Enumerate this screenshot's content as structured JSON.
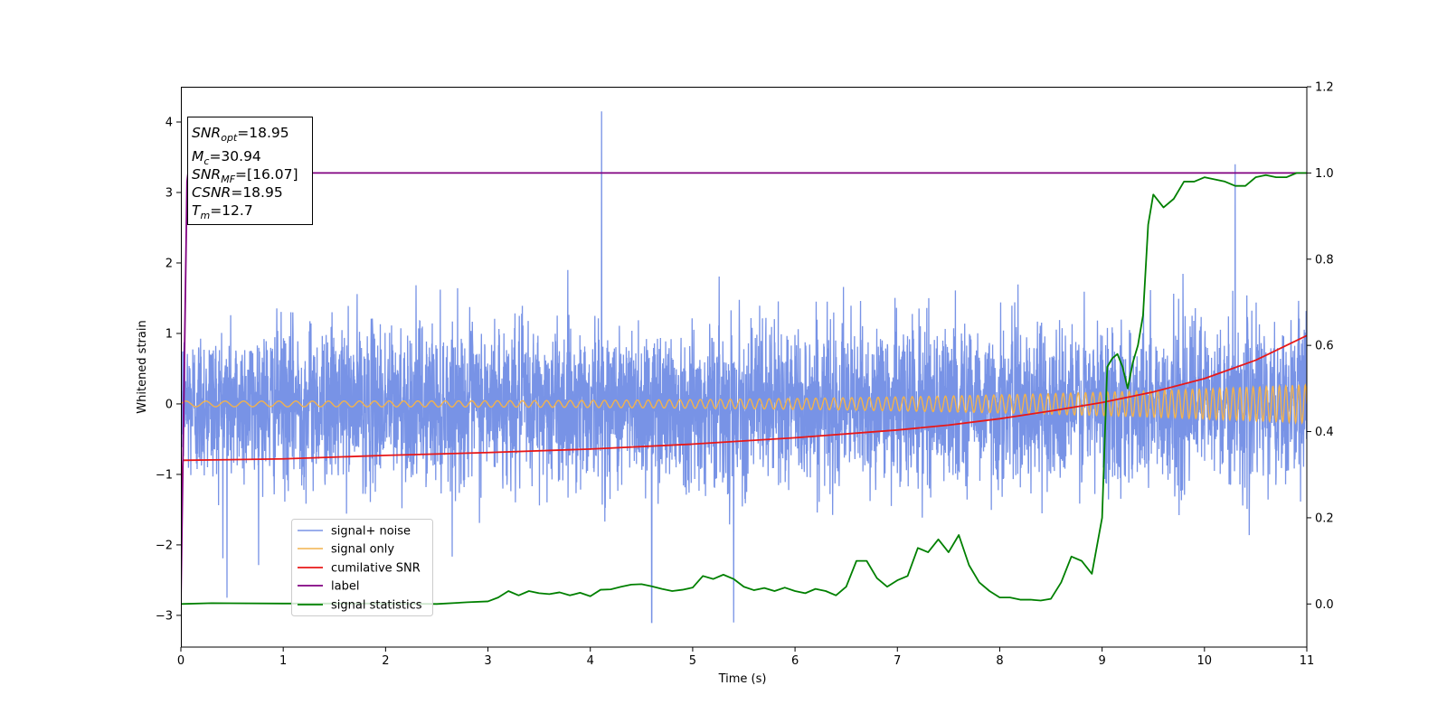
{
  "chart_data": {
    "type": "line",
    "xlabel": "Time (s)",
    "ylabel": "Whitened strain",
    "xlim": [
      0,
      11
    ],
    "ylim": [
      -3.45,
      4.5
    ],
    "y2lim": [
      -0.1,
      1.2
    ],
    "x_ticks": [
      "0",
      "1",
      "2",
      "3",
      "4",
      "5",
      "6",
      "7",
      "8",
      "9",
      "10",
      "11"
    ],
    "y_ticks": [
      "−3",
      "−2",
      "−1",
      "0",
      "1",
      "2",
      "3",
      "4"
    ],
    "y2_ticks": [
      "0.0",
      "0.2",
      "0.4",
      "0.6",
      "0.8",
      "1.0",
      "1.2"
    ],
    "grid": false,
    "legend_position": "lower-left",
    "info_box": {
      "snr_opt": {
        "sym": "SNR",
        "sub": "opt",
        "val": "=18.95"
      },
      "mc": {
        "sym": "M",
        "sub": "c",
        "val": "=30.94"
      },
      "snr_mf": {
        "sym": "SNR",
        "sub": "MF",
        "val": "=[16.07]"
      },
      "csnr": {
        "sym": "CSNR",
        "sub": "",
        "val": "=18.95"
      },
      "tm": {
        "sym": "T",
        "sub": "m",
        "val": "=12.7"
      }
    },
    "series": [
      {
        "name": "signal+ noise",
        "axis": "left",
        "color": "#7893e6",
        "description_values": {
          "typical_amplitude": [
            -1.5,
            1.5
          ],
          "peaks": [
            [
              4.11,
              4.15
            ],
            [
              10.3,
              3.4
            ],
            [
              4.6,
              -3.1
            ],
            [
              5.4,
              -3.1
            ],
            [
              0.45,
              -2.75
            ]
          ]
        }
      },
      {
        "name": "signal only",
        "axis": "left",
        "color": "#f2b24d",
        "chirp": {
          "t0": 0,
          "t1": 11,
          "f0": 5.0,
          "f1": 16.0,
          "a0": 0.04,
          "a1": 0.27
        }
      },
      {
        "name": "cumilative SNR",
        "axis": "left",
        "color": "#e81818",
        "x": [
          0,
          0.02,
          1,
          2,
          3,
          4,
          5,
          6,
          7,
          7.5,
          8,
          8.5,
          9,
          9.5,
          10,
          10.5,
          11
        ],
        "y": [
          -1.5,
          -0.8,
          -0.78,
          -0.73,
          -0.69,
          -0.64,
          -0.57,
          -0.48,
          -0.37,
          -0.3,
          -0.21,
          -0.1,
          0.02,
          0.17,
          0.36,
          0.62,
          0.97
        ]
      },
      {
        "name": "label",
        "axis": "right",
        "color": "#800080",
        "x": [
          0,
          0.06,
          0.07,
          11
        ],
        "y": [
          0.0,
          0.98,
          1.0,
          1.0
        ]
      },
      {
        "name": "signal statistics",
        "axis": "right",
        "color": "#008000",
        "x": [
          0,
          0.3,
          1,
          2,
          2.5,
          2.8,
          3,
          3.1,
          3.2,
          3.3,
          3.4,
          3.5,
          3.6,
          3.7,
          3.8,
          3.9,
          4.0,
          4.1,
          4.2,
          4.3,
          4.4,
          4.5,
          4.6,
          4.7,
          4.8,
          4.9,
          5.0,
          5.1,
          5.2,
          5.3,
          5.4,
          5.5,
          5.6,
          5.7,
          5.8,
          5.9,
          6.0,
          6.1,
          6.2,
          6.3,
          6.4,
          6.5,
          6.6,
          6.7,
          6.8,
          6.9,
          7.0,
          7.1,
          7.2,
          7.3,
          7.4,
          7.5,
          7.6,
          7.7,
          7.8,
          7.9,
          8.0,
          8.1,
          8.2,
          8.3,
          8.4,
          8.5,
          8.6,
          8.7,
          8.8,
          8.9,
          9.0,
          9.05,
          9.1,
          9.15,
          9.2,
          9.25,
          9.3,
          9.35,
          9.4,
          9.45,
          9.5,
          9.6,
          9.7,
          9.8,
          9.9,
          10.0,
          10.1,
          10.2,
          10.3,
          10.4,
          10.5,
          10.6,
          10.7,
          10.8,
          10.9,
          11.0
        ],
        "y": [
          0.0,
          0.002,
          0.001,
          0.001,
          0.0,
          0.004,
          0.006,
          0.015,
          0.03,
          0.02,
          0.03,
          0.025,
          0.023,
          0.027,
          0.02,
          0.026,
          0.018,
          0.033,
          0.034,
          0.04,
          0.045,
          0.046,
          0.041,
          0.035,
          0.03,
          0.033,
          0.038,
          0.065,
          0.058,
          0.068,
          0.058,
          0.04,
          0.032,
          0.037,
          0.03,
          0.038,
          0.03,
          0.025,
          0.035,
          0.03,
          0.02,
          0.04,
          0.1,
          0.1,
          0.06,
          0.04,
          0.055,
          0.065,
          0.13,
          0.12,
          0.15,
          0.12,
          0.16,
          0.09,
          0.05,
          0.03,
          0.015,
          0.015,
          0.01,
          0.01,
          0.008,
          0.012,
          0.05,
          0.11,
          0.1,
          0.07,
          0.2,
          0.55,
          0.57,
          0.58,
          0.55,
          0.5,
          0.56,
          0.6,
          0.67,
          0.88,
          0.95,
          0.92,
          0.94,
          0.98,
          0.98,
          0.99,
          0.985,
          0.98,
          0.97,
          0.97,
          0.99,
          0.995,
          0.99,
          0.99,
          1.0,
          1.0
        ]
      }
    ]
  }
}
